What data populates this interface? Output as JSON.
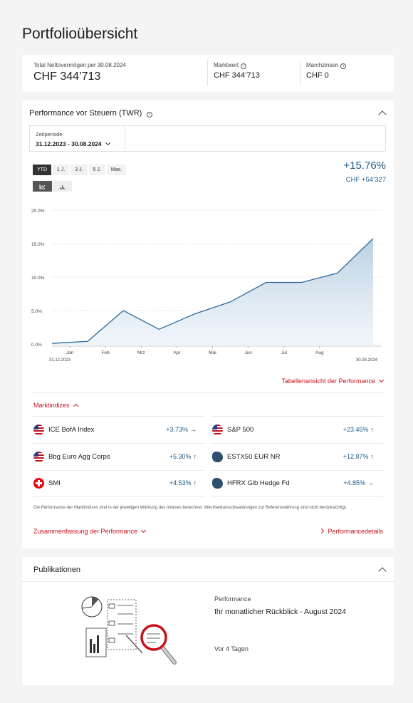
{
  "page_title": "Portfolioübersicht",
  "summary": {
    "total_label": "Total Nettovermögen per 30.08.2024",
    "total_value": "CHF 344’713",
    "market_label": "Marktwert",
    "market_value": "CHF 344’713",
    "interest_label": "Marchzinsen",
    "interest_value": "CHF 0"
  },
  "performance": {
    "title": "Performance vor Steuern (TWR)",
    "period_label": "Zeitperiode",
    "period_value": "31.12.2023 - 30.08.2024",
    "ranges": [
      "YTD",
      "1 J.",
      "3 J.",
      "5 J.",
      "Max."
    ],
    "active_range": "YTD",
    "return_pct": "+15.76%",
    "return_chf": "CHF +54’327",
    "table_link": "Tabellenansicht der Performance",
    "indices_label": "Marktindizes",
    "footnote": "Die Performance der Marktindizes sind in der jeweiligen Währung des Indexes berechnet. Wechselkursschwankungen zur Referenzwährung sind nicht berücksichtigt.",
    "summary_link": "Zusammenfassung der Performance",
    "details_link": "Performancedetails"
  },
  "indices": [
    {
      "name": "ICE BofA Index",
      "value": "+3.73%",
      "arrow": "→",
      "flag": "us"
    },
    {
      "name": "S&P 500",
      "value": "+23.45%",
      "arrow": "↑",
      "flag": "us"
    },
    {
      "name": "Bbg Euro Agg Corps",
      "value": "+5.30%",
      "arrow": "↑",
      "flag": "us"
    },
    {
      "name": "ESTX50 EUR NR",
      "value": "+12.87%",
      "arrow": "↑",
      "flag": "world"
    },
    {
      "name": "SMI",
      "value": "+4.53%",
      "arrow": "↑",
      "flag": "ch"
    },
    {
      "name": "HFRX Glb Hedge Fd",
      "value": "+4.85%",
      "arrow": "→",
      "flag": "world"
    }
  ],
  "chart_data": {
    "type": "area",
    "x": [
      "31.12.2023",
      "Jan",
      "Feb",
      "Mrz",
      "Apr",
      "Mai",
      "Jun",
      "Jul",
      "Aug",
      "30.08.2024"
    ],
    "x_ticks": [
      "Jan",
      "Feb",
      "Mrz",
      "Apr",
      "Mai",
      "Jun",
      "Jul",
      "Aug"
    ],
    "x_edge_labels": [
      "31.12.2023",
      "30.08.2024"
    ],
    "y_ticks": [
      "20.0%",
      "15.0%",
      "10.0%",
      "5.0%",
      "0.0%"
    ],
    "ylim": [
      0,
      20
    ],
    "series": [
      {
        "values": [
          0.1,
          0.4,
          5.0,
          2.2,
          4.5,
          6.3,
          9.2,
          9.2,
          10.6,
          15.76
        ]
      }
    ],
    "grid": true,
    "color": "#2a6a9c"
  },
  "publications": {
    "title": "Publikationen",
    "category": "Performance",
    "item_title": "Ihr monatlicher Rückblick - August 2024",
    "date": "Vor 4 Tagen"
  }
}
